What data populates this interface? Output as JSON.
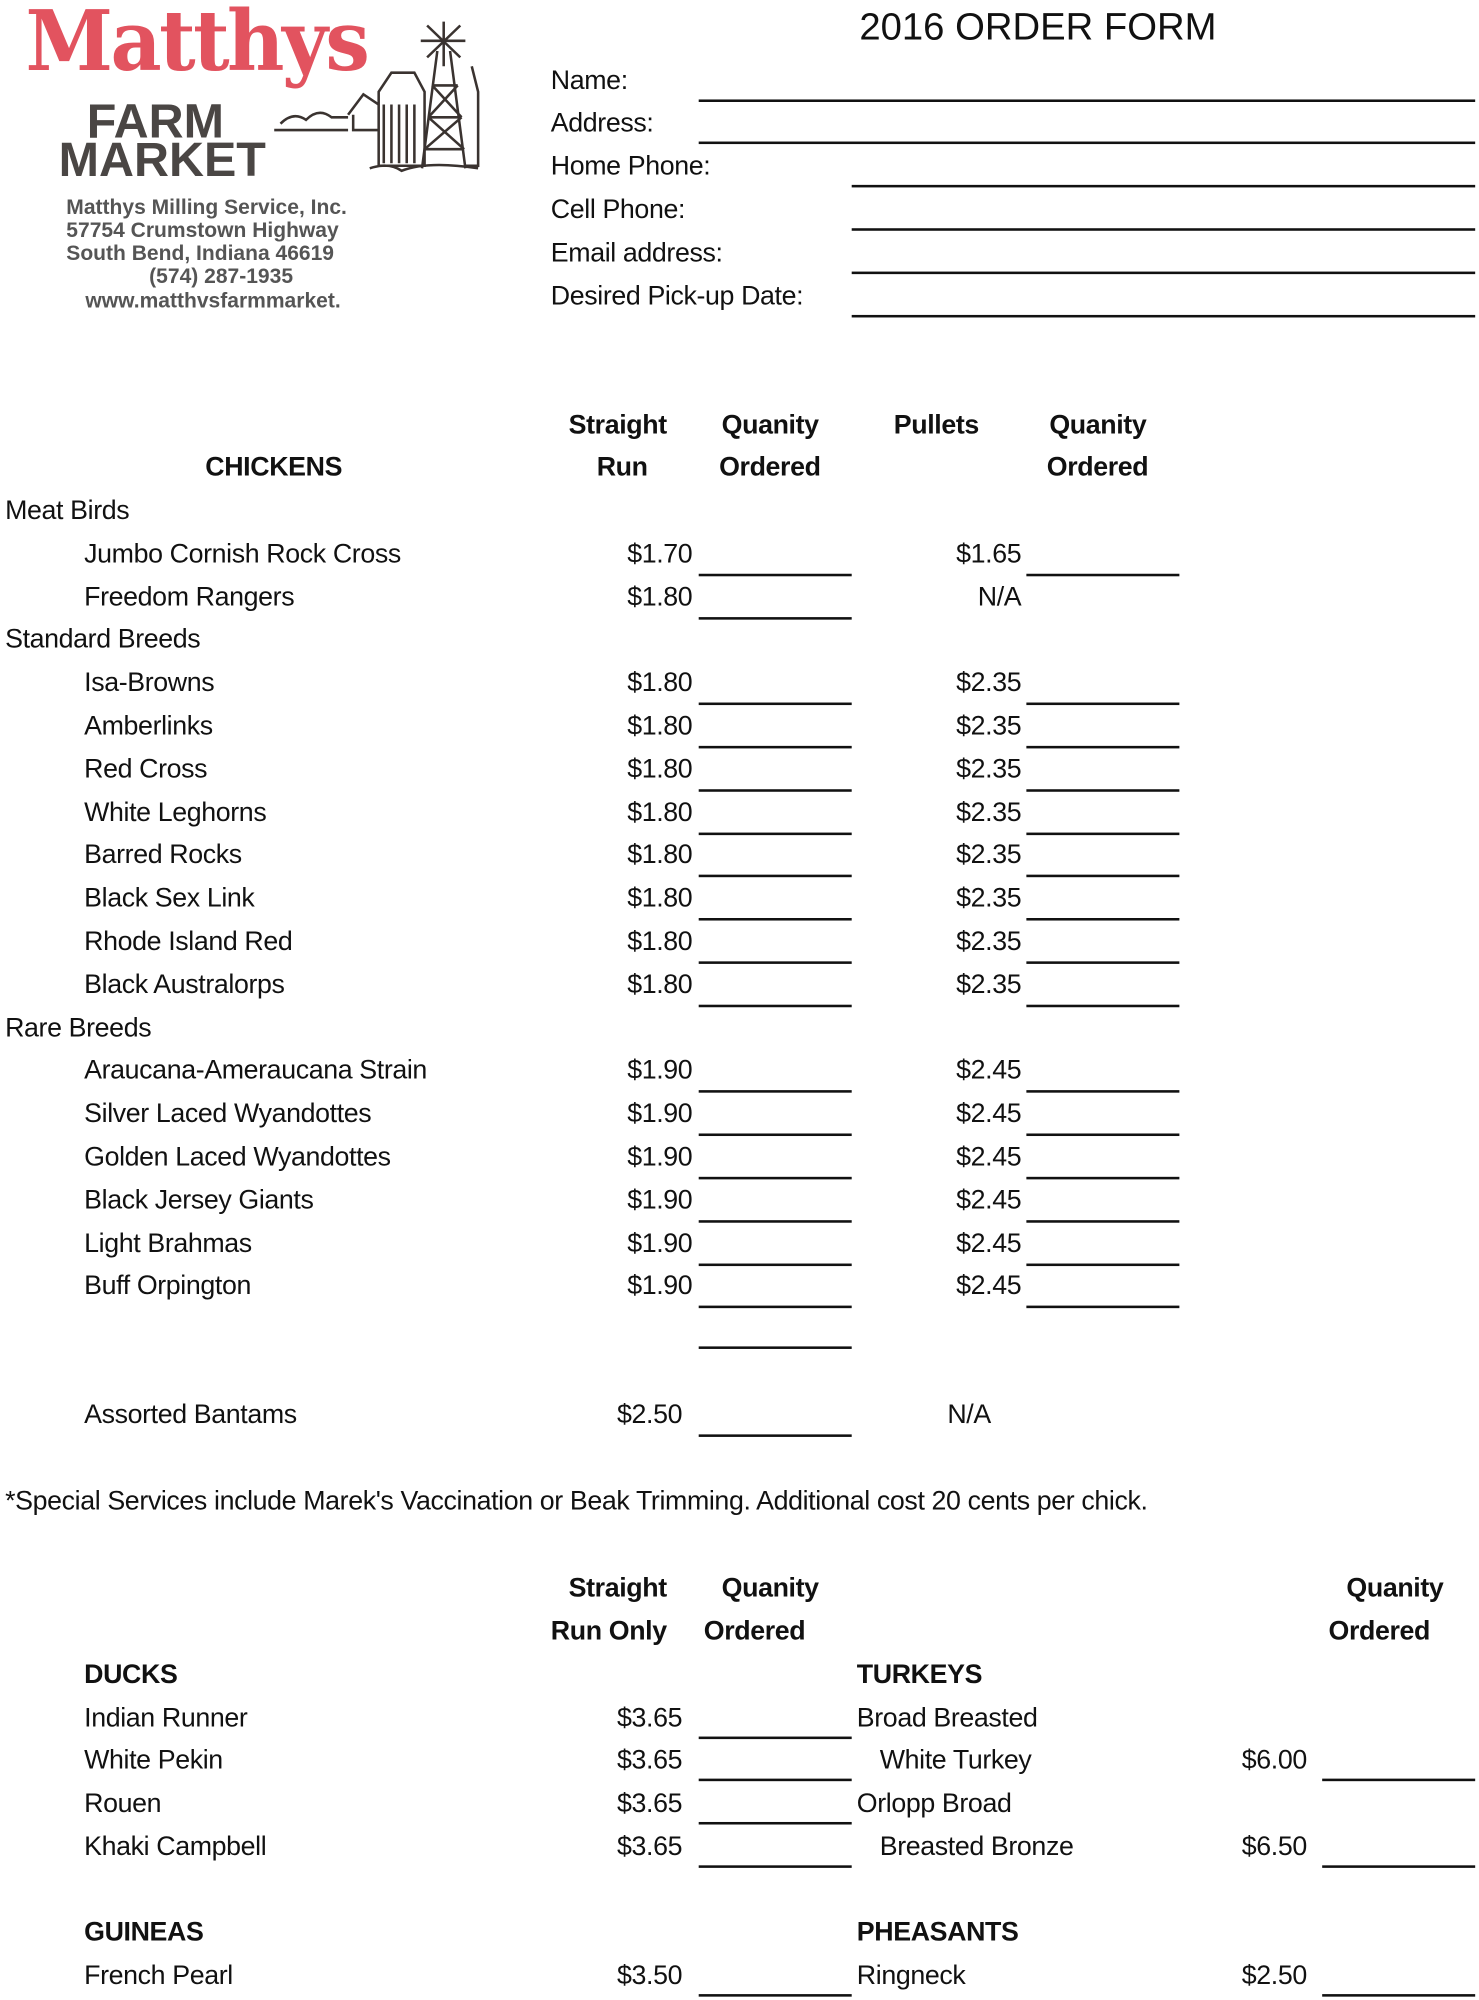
{
  "logo": {
    "name": "Matthys",
    "line1": "FARM",
    "line2": "MARKET",
    "address": [
      "Matthys Milling Service, Inc.",
      "57754 Crumstown Highway",
      "South Bend, Indiana 46619",
      "(574) 287-1935",
      "www.matthvsfarmmarket."
    ]
  },
  "title": "2016 ORDER FORM",
  "contact_fields": [
    {
      "label": "Name:",
      "value": ""
    },
    {
      "label": "Address:",
      "value": ""
    },
    {
      "label": "Home Phone:",
      "value": ""
    },
    {
      "label": "Cell Phone:",
      "value": ""
    },
    {
      "label": "Email address:",
      "value": ""
    },
    {
      "label": "Desired Pick-up Date:",
      "value": ""
    }
  ],
  "chickens": {
    "heading": "CHICKENS",
    "col_straight": [
      "Straight",
      "Run"
    ],
    "col_qty1": [
      "Quanity",
      "Ordered"
    ],
    "col_pullets": "Pullets",
    "col_qty2": [
      "Quanity",
      "Ordered"
    ],
    "groups": [
      {
        "name": "Meat Birds",
        "items": [
          {
            "name": "Jumbo Cornish Rock Cross",
            "straight": "$1.70",
            "pullets": "$1.65"
          },
          {
            "name": "Freedom Rangers",
            "straight": "$1.80",
            "pullets": "N/A"
          }
        ]
      },
      {
        "name": "Standard Breeds",
        "items": [
          {
            "name": "Isa-Browns",
            "straight": "$1.80",
            "pullets": "$2.35"
          },
          {
            "name": "Amberlinks",
            "straight": "$1.80",
            "pullets": "$2.35"
          },
          {
            "name": "Red Cross",
            "straight": "$1.80",
            "pullets": "$2.35"
          },
          {
            "name": "White Leghorns",
            "straight": "$1.80",
            "pullets": "$2.35"
          },
          {
            "name": "Barred Rocks",
            "straight": "$1.80",
            "pullets": "$2.35"
          },
          {
            "name": "Black Sex Link",
            "straight": "$1.80",
            "pullets": "$2.35"
          },
          {
            "name": "Rhode Island Red",
            "straight": "$1.80",
            "pullets": "$2.35"
          },
          {
            "name": "Black Australorps",
            "straight": "$1.80",
            "pullets": "$2.35"
          }
        ]
      },
      {
        "name": "Rare Breeds",
        "items": [
          {
            "name": "Araucana-Ameraucana Strain",
            "straight": "$1.90",
            "pullets": "$2.45"
          },
          {
            "name": "Silver Laced Wyandottes",
            "straight": "$1.90",
            "pullets": "$2.45"
          },
          {
            "name": "Golden Laced Wyandottes",
            "straight": "$1.90",
            "pullets": "$2.45"
          },
          {
            "name": "Black Jersey Giants",
            "straight": "$1.90",
            "pullets": "$2.45"
          },
          {
            "name": "Light Brahmas",
            "straight": "$1.90",
            "pullets": "$2.45"
          },
          {
            "name": "Buff Orpington",
            "straight": "$1.90",
            "pullets": "$2.45"
          }
        ]
      }
    ],
    "bantams": {
      "name": "Assorted Bantams",
      "straight": "$2.50",
      "pullets": "N/A"
    }
  },
  "footnote": "*Special Services include Marek's Vaccination or Beak Trimming.  Additional cost 20 cents per chick.",
  "other": {
    "col_straight": [
      "Straight",
      "Run Only"
    ],
    "col_qty1": [
      "Quanity",
      "Ordered"
    ],
    "col_qty2": [
      "Quanity",
      "Ordered"
    ],
    "ducks": {
      "heading": "DUCKS",
      "items": [
        {
          "name": "Indian Runner",
          "price": "$3.65"
        },
        {
          "name": "White Pekin",
          "price": "$3.65"
        },
        {
          "name": "Rouen",
          "price": "$3.65"
        },
        {
          "name": "Khaki Campbell",
          "price": "$3.65"
        }
      ]
    },
    "turkeys": {
      "heading": "TURKEYS",
      "items": [
        {
          "name": "Broad Breasted",
          "sub": "White Turkey",
          "price": "$6.00"
        },
        {
          "name": "Orlopp Broad",
          "sub": "Breasted Bronze",
          "price": "$6.50"
        }
      ]
    },
    "guineas": {
      "heading": "GUINEAS",
      "items": [
        {
          "name": "French Pearl",
          "price": "$3.50"
        }
      ]
    },
    "pheasants": {
      "heading": "PHEASANTS",
      "items": [
        {
          "name": "Ringneck",
          "price": "$2.50"
        }
      ]
    }
  }
}
